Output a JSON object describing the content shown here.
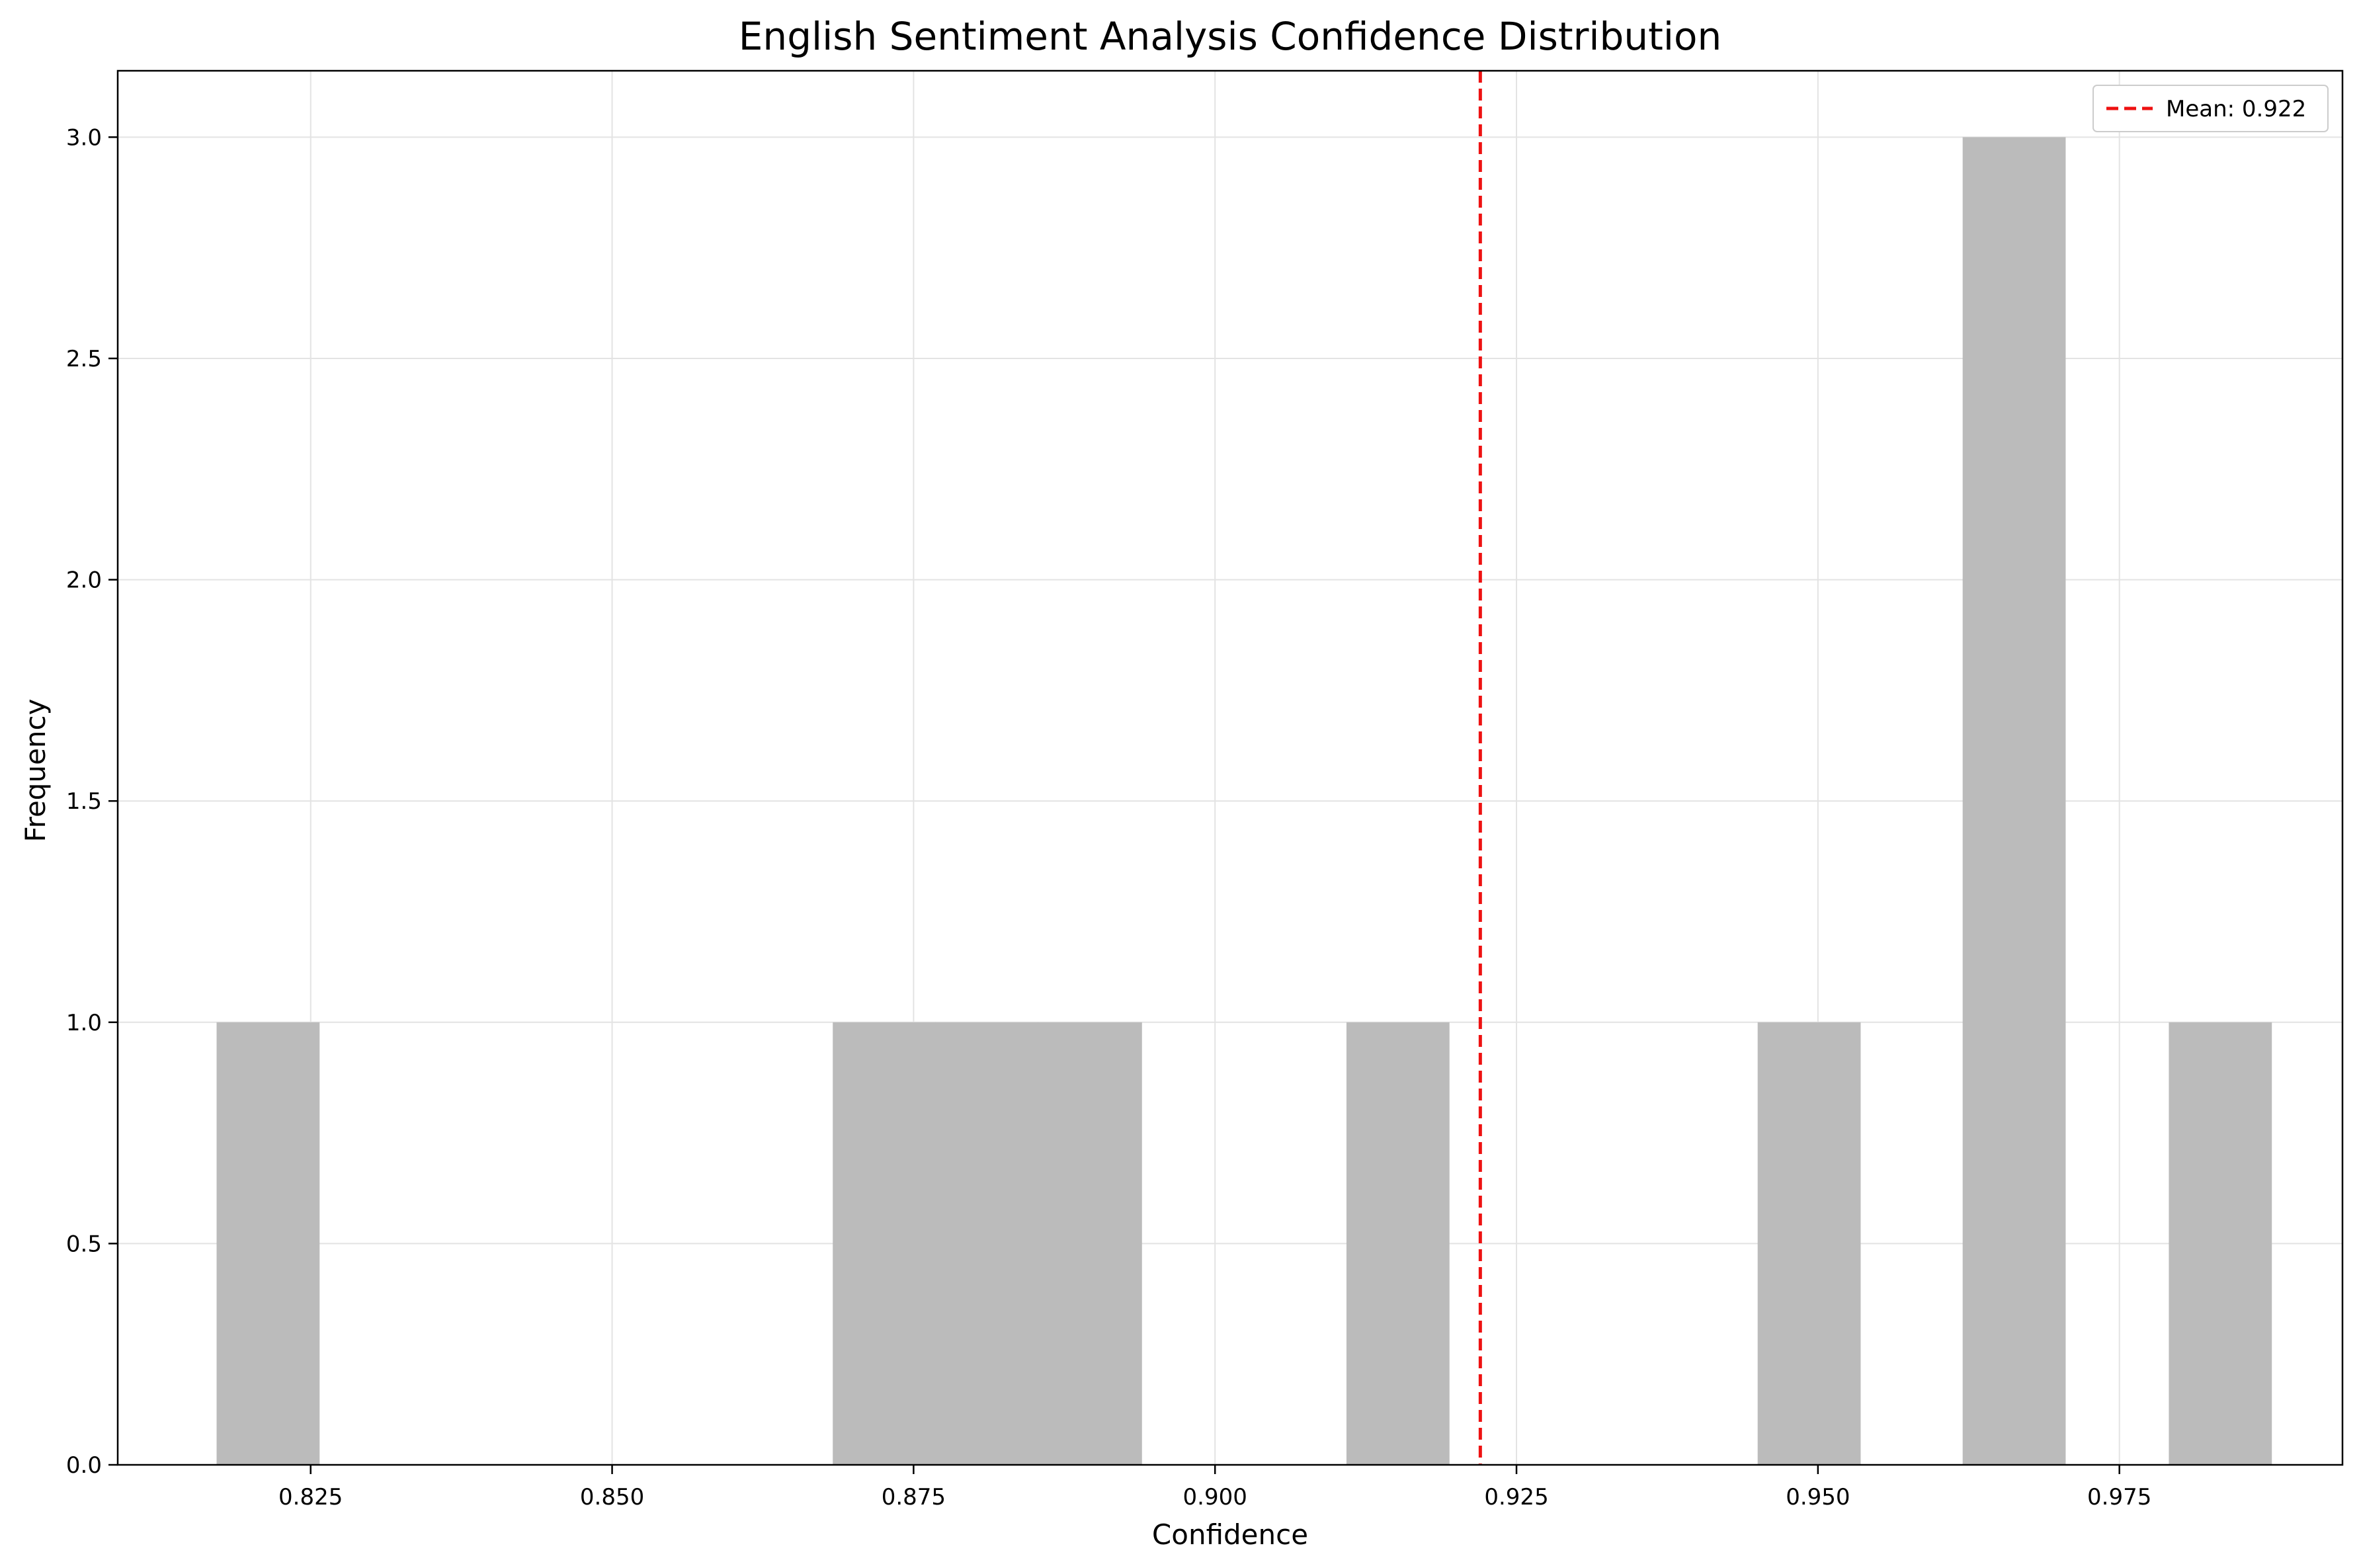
{
  "chart_data": {
    "type": "bar",
    "title": "English Sentiment Analysis Confidence Distribution",
    "xlabel": "Confidence",
    "ylabel": "Frequency",
    "xlim": [
      0.809,
      0.9935
    ],
    "ylim": [
      0,
      3.15
    ],
    "xticks": [
      "0.825",
      "0.850",
      "0.875",
      "0.900",
      "0.925",
      "0.950",
      "0.975"
    ],
    "yticks": [
      "0.0",
      "0.5",
      "1.0",
      "1.5",
      "2.0",
      "2.5",
      "3.0"
    ],
    "grid": true,
    "legend_position": "top-right",
    "bar_color": "#bbbbbb",
    "bins": [
      {
        "x0": 0.8172,
        "x1": 0.8257,
        "count": 1
      },
      {
        "x0": 0.8683,
        "x1": 0.8768,
        "count": 1
      },
      {
        "x0": 0.8768,
        "x1": 0.8853,
        "count": 1
      },
      {
        "x0": 0.8853,
        "x1": 0.8939,
        "count": 1
      },
      {
        "x0": 0.9109,
        "x1": 0.9194,
        "count": 1
      },
      {
        "x0": 0.945,
        "x1": 0.9535,
        "count": 1
      },
      {
        "x0": 0.962,
        "x1": 0.9705,
        "count": 3
      },
      {
        "x0": 0.9791,
        "x1": 0.9876,
        "count": 1
      }
    ],
    "mean_line": {
      "value": 0.922,
      "label": "Mean: 0.922",
      "color": "#ee1111"
    }
  }
}
